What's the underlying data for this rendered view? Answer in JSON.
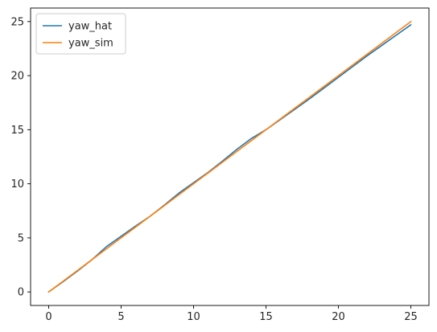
{
  "chart_data": {
    "type": "line",
    "title": "",
    "xlabel": "",
    "ylabel": "",
    "xlim": [
      -1.25,
      26.25
    ],
    "ylim": [
      -1.25,
      26.25
    ],
    "xticks": [
      0,
      5,
      10,
      15,
      20,
      25
    ],
    "yticks": [
      0,
      5,
      10,
      15,
      20,
      25
    ],
    "grid": false,
    "legend_position": "top-left",
    "series": [
      {
        "name": "yaw_hat",
        "color": "#1f77b4",
        "x": [
          0,
          1,
          2,
          3,
          4,
          5,
          6,
          7,
          8,
          9,
          10,
          11,
          12,
          13,
          14,
          15,
          16,
          17,
          18,
          19,
          20,
          21,
          22,
          23,
          24,
          25
        ],
        "y": [
          0,
          0.95,
          1.95,
          3.0,
          4.2,
          5.15,
          6.1,
          7.0,
          8.05,
          9.15,
          10.1,
          11.05,
          12.1,
          13.2,
          14.2,
          15.0,
          15.95,
          16.9,
          17.85,
          18.85,
          19.85,
          20.85,
          21.85,
          22.8,
          23.75,
          24.7
        ]
      },
      {
        "name": "yaw_sim",
        "color": "#ff7f0e",
        "x": [
          0,
          1,
          2,
          3,
          4,
          5,
          6,
          7,
          8,
          9,
          10,
          11,
          12,
          13,
          14,
          15,
          16,
          17,
          18,
          19,
          20,
          21,
          22,
          23,
          24,
          25
        ],
        "y": [
          0,
          1.0,
          2.0,
          3.0,
          4.0,
          5.0,
          6.0,
          7.0,
          8.0,
          9.0,
          10.0,
          11.0,
          12.0,
          13.0,
          14.0,
          15.0,
          16.0,
          17.0,
          18.0,
          19.0,
          20.0,
          21.0,
          22.0,
          23.0,
          24.0,
          25.0
        ]
      }
    ]
  }
}
